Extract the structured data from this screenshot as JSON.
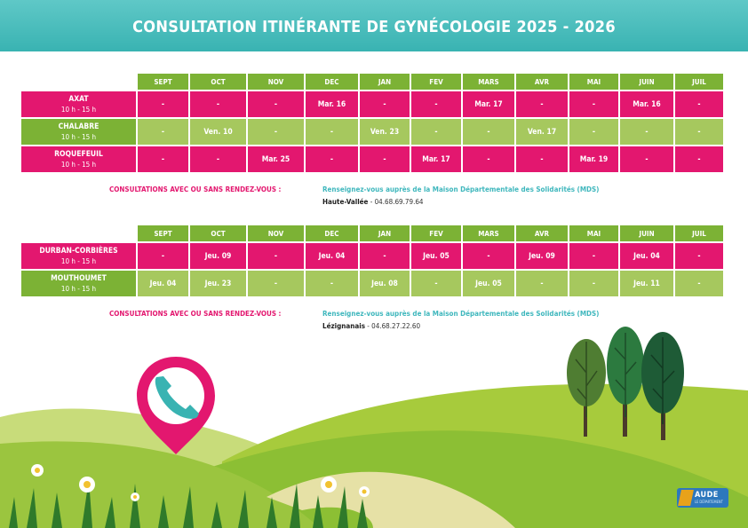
{
  "title": "CONSULTATION ITINÉRANTE DE GYNÉCOLOGIE 2025 - 2026",
  "months": [
    "SEPT",
    "OCT",
    "NOV",
    "DEC",
    "JAN",
    "FEV",
    "MARS",
    "AVR",
    "MAI",
    "JUIN",
    "JUIL"
  ],
  "table1": {
    "rows": [
      {
        "name": "AXAT",
        "hours": "10 h - 15 h",
        "cells": [
          "-",
          "-",
          "-",
          "Mar. 16",
          "-",
          "-",
          "Mar. 17",
          "-",
          "-",
          "Mar. 16",
          "-"
        ]
      },
      {
        "name": "CHALABRE",
        "hours": "10 h - 15 h",
        "cells": [
          "-",
          "Ven. 10",
          "-",
          "-",
          "Ven. 23",
          "-",
          "-",
          "Ven. 17",
          "-",
          "-",
          "-"
        ]
      },
      {
        "name": "ROQUEFEUIL",
        "hours": "10 h - 15 h",
        "cells": [
          "-",
          "-",
          "Mar. 25",
          "-",
          "-",
          "Mar. 17",
          "-",
          "-",
          "Mar. 19",
          "-",
          "-"
        ]
      }
    ]
  },
  "consult1": {
    "label": "CONSULTATIONS AVEC OU SANS RENDEZ-VOUS :",
    "info": "Renseignez-vous auprès de la Maison Départementale des Solidarités (MDS)",
    "mds_name": "Haute-Vallée",
    "mds_phone": " - 04.68.69.79.64"
  },
  "table2": {
    "rows": [
      {
        "name": "DURBAN-CORBIÈRES",
        "hours": "10 h - 15 h",
        "cells": [
          "-",
          "Jeu. 09",
          "-",
          "Jeu. 04",
          "-",
          "Jeu. 05",
          "-",
          "Jeu. 09",
          "-",
          "Jeu. 04",
          "-"
        ]
      },
      {
        "name": "MOUTHOUMET",
        "hours": "10 h - 15 h",
        "cells": [
          "Jeu. 04",
          "Jeu. 23",
          "-",
          "-",
          "Jeu. 08",
          "-",
          "Jeu. 05",
          "-",
          "-",
          "Jeu. 11",
          "-"
        ]
      }
    ]
  },
  "consult2": {
    "label": "CONSULTATIONS AVEC OU SANS RENDEZ-VOUS :",
    "info": "Renseignez-vous auprès de la Maison Départementale des Solidarités (MDS)",
    "mds_name": "Lézignanais",
    "mds_phone": " - 04.68.27.22.60"
  },
  "logo": {
    "text": "AUDE",
    "sub": "LE DÉPARTEMENT"
  },
  "colors": {
    "teal": "#39b3b2",
    "pink": "#e3176f",
    "green": "#7cb235",
    "light_green": "#a6c85e"
  },
  "icons": [
    "phone-icon",
    "map-pin-icon",
    "tree-icon",
    "flower-icon"
  ]
}
